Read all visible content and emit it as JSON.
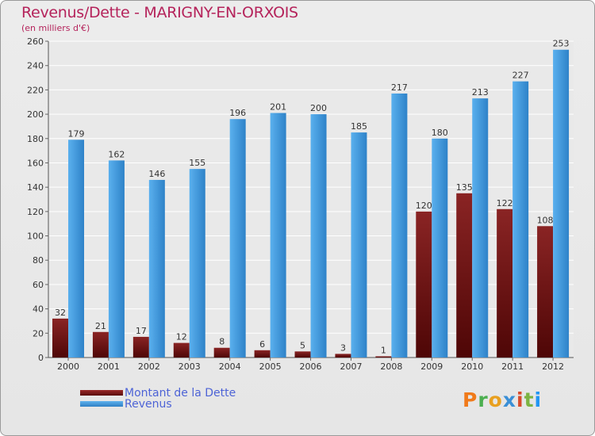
{
  "header": {
    "title": "Revenus/Dette - MARIGNY-EN-ORXOIS",
    "subtitle": "(en milliers d'€)"
  },
  "legend": {
    "items": [
      {
        "label": "Montant de la Dette",
        "color": "#7a1a1a"
      },
      {
        "label": "Revenus",
        "color": "#3f96db"
      }
    ]
  },
  "logo": {
    "text": "Proxiti",
    "letter_colors": [
      "#f07a1a",
      "#4caf50",
      "#e8a020",
      "#3a8fd6",
      "#d84a2a",
      "#7cb342",
      "#2196f3"
    ]
  },
  "chart_data": {
    "type": "bar",
    "title": "Revenus/Dette - MARIGNY-EN-ORXOIS",
    "subtitle": "(en milliers d'€)",
    "categories": [
      "2000",
      "2001",
      "2002",
      "2003",
      "2004",
      "2005",
      "2006",
      "2007",
      "2008",
      "2009",
      "2010",
      "2011",
      "2012"
    ],
    "series": [
      {
        "name": "Montant de la Dette",
        "color": "#7a1a1a",
        "values": [
          32,
          21,
          17,
          12,
          8,
          6,
          5,
          3,
          1,
          120,
          135,
          122,
          108
        ]
      },
      {
        "name": "Revenus",
        "color": "#3f96db",
        "values": [
          179,
          162,
          146,
          155,
          196,
          201,
          200,
          185,
          217,
          180,
          213,
          227,
          253
        ]
      }
    ],
    "ylim": [
      0,
      260
    ],
    "yticks": [
      0,
      20,
      40,
      60,
      80,
      100,
      120,
      140,
      160,
      180,
      200,
      220,
      240,
      260
    ],
    "grid": true,
    "legend_position": "bottom-left"
  }
}
